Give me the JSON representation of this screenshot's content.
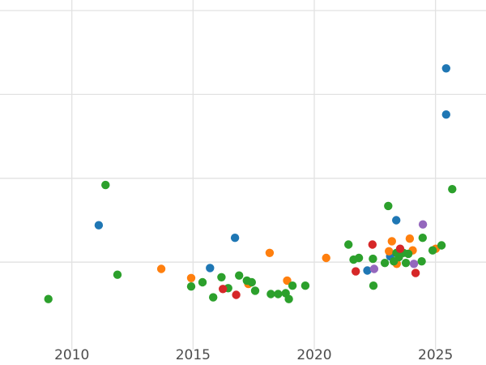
{
  "figure": {
    "title": "",
    "background_color": "#ffffff",
    "gridline_color": "#e2e2e2",
    "tick_label_color": "#4c4c4c"
  },
  "chart_data": {
    "type": "scatter",
    "title": "",
    "xlabel": "",
    "ylabel": "",
    "x_tick_labels": [
      "2010",
      "2015",
      "2020",
      "2025"
    ],
    "x_ticks": [
      2010,
      2015,
      2020,
      2025
    ],
    "x_range": [
      2007.05,
      2027.1
    ],
    "y_range": [
      0,
      4.32
    ],
    "y_gridline_units": [
      1,
      2,
      3,
      4
    ],
    "y_tick_labels": "none (horizontal gridlines are unlabeled)",
    "grid": true,
    "legend_position": "none",
    "marker": "circle",
    "series": [
      {
        "name": "blue",
        "color": "#1f77b4",
        "points": [
          [
            2011.11,
            1.44
          ],
          [
            2015.7,
            0.93
          ],
          [
            2016.73,
            1.29
          ],
          [
            2022.19,
            0.9
          ],
          [
            2023.13,
            1.07
          ],
          [
            2023.38,
            1.5
          ],
          [
            2025.44,
            3.31
          ],
          [
            2025.44,
            2.76
          ]
        ]
      },
      {
        "name": "orange",
        "color": "#ff7f0e",
        "points": [
          [
            2013.69,
            0.92
          ],
          [
            2014.92,
            0.81
          ],
          [
            2017.28,
            0.74
          ],
          [
            2018.16,
            1.11
          ],
          [
            2018.88,
            0.78
          ],
          [
            2020.49,
            1.05
          ],
          [
            2023.08,
            1.13
          ],
          [
            2023.2,
            1.25
          ],
          [
            2023.4,
            0.98
          ],
          [
            2023.94,
            1.28
          ],
          [
            2024.06,
            1.14
          ],
          [
            2025.01,
            1.16
          ]
        ]
      },
      {
        "name": "green",
        "color": "#2ca02c",
        "points": [
          [
            2009.03,
            0.56
          ],
          [
            2011.39,
            1.92
          ],
          [
            2011.88,
            0.85
          ],
          [
            2014.92,
            0.71
          ],
          [
            2015.39,
            0.76
          ],
          [
            2015.83,
            0.58
          ],
          [
            2016.17,
            0.82
          ],
          [
            2016.45,
            0.69
          ],
          [
            2016.9,
            0.84
          ],
          [
            2017.22,
            0.78
          ],
          [
            2017.42,
            0.76
          ],
          [
            2017.56,
            0.66
          ],
          [
            2018.21,
            0.62
          ],
          [
            2018.51,
            0.62
          ],
          [
            2018.82,
            0.63
          ],
          [
            2018.95,
            0.56
          ],
          [
            2019.1,
            0.72
          ],
          [
            2019.63,
            0.72
          ],
          [
            2021.41,
            1.21
          ],
          [
            2021.62,
            1.03
          ],
          [
            2021.84,
            1.05
          ],
          [
            2022.42,
            1.04
          ],
          [
            2022.44,
            0.72
          ],
          [
            2022.91,
            0.99
          ],
          [
            2023.05,
            1.67
          ],
          [
            2023.28,
            1.01
          ],
          [
            2023.39,
            1.11
          ],
          [
            2023.49,
            1.06
          ],
          [
            2023.68,
            1.11
          ],
          [
            2023.78,
            0.99
          ],
          [
            2023.88,
            1.1
          ],
          [
            2024.43,
            1.01
          ],
          [
            2024.47,
            1.29
          ],
          [
            2024.88,
            1.14
          ],
          [
            2025.25,
            1.2
          ],
          [
            2025.69,
            1.87
          ]
        ]
      },
      {
        "name": "purple",
        "color": "#9467bd",
        "points": [
          [
            2022.47,
            0.92
          ],
          [
            2024.11,
            0.98
          ],
          [
            2024.48,
            1.45
          ]
        ]
      },
      {
        "name": "red",
        "color": "#d62728",
        "points": [
          [
            2016.23,
            0.68
          ],
          [
            2016.78,
            0.61
          ],
          [
            2021.71,
            0.89
          ],
          [
            2022.4,
            1.21
          ],
          [
            2023.54,
            1.16
          ],
          [
            2024.18,
            0.87
          ]
        ]
      }
    ]
  }
}
